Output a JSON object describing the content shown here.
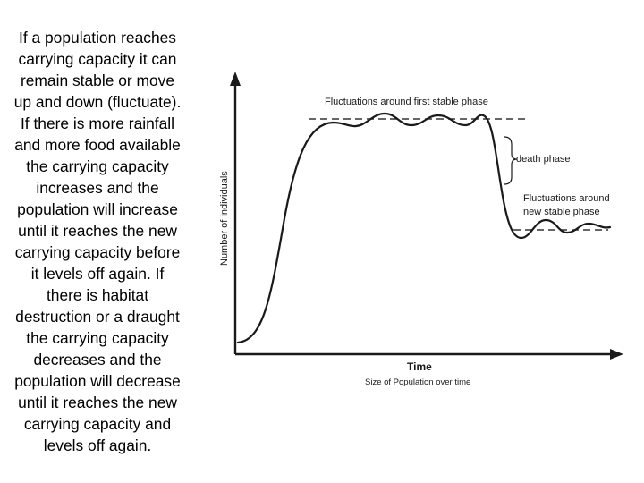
{
  "text_block": {
    "lines": [
      "If a population reaches",
      "carrying capacity it can",
      "remain stable or move",
      "up and down (fluctuate).",
      "If there is more rainfall",
      "and more food available",
      "the carrying capacity",
      "increases and the",
      "population will increase",
      "until it reaches the new",
      "carrying capacity before",
      "it levels off again. If",
      "there is habitat",
      "destruction or a draught",
      "the carrying capacity",
      "decreases and the",
      "population will decrease",
      "until it reaches the new",
      "carrying capacity and",
      "levels off again."
    ]
  },
  "diagram": {
    "y_axis_label": "Number of individuals",
    "x_axis_label": "Time",
    "caption": "Size of Population over time",
    "labels": {
      "first_phase": "Fluctuations around first stable phase",
      "death_phase": "death phase",
      "new_phase_line1": "Fluctuations around",
      "new_phase_line2": "new stable phase"
    },
    "colors": {
      "curve": "#1a1a1a",
      "axes": "#1a1a1a",
      "dashed": "#333333"
    }
  }
}
